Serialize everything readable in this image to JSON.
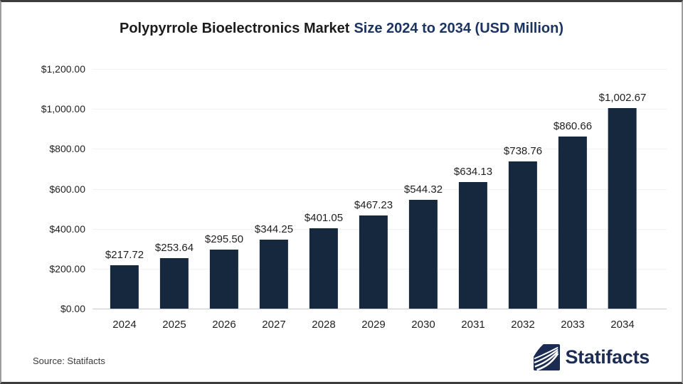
{
  "title": {
    "main": "Polypyrrole Bioelectronics Market",
    "accent": "Size 2024 to 2034 (USD Million)"
  },
  "chart_data": {
    "type": "bar",
    "title": "Polypyrrole Bioelectronics Market Size 2024 to 2034 (USD Million)",
    "categories": [
      "2024",
      "2025",
      "2026",
      "2027",
      "2028",
      "2029",
      "2030",
      "2031",
      "2032",
      "2033",
      "2034"
    ],
    "values": [
      217.72,
      253.64,
      295.5,
      344.25,
      401.05,
      467.23,
      544.32,
      634.13,
      738.76,
      860.66,
      1002.67
    ],
    "value_labels": [
      "$217.72",
      "$253.64",
      "$295.50",
      "$344.25",
      "$401.05",
      "$467.23",
      "$544.32",
      "$634.13",
      "$738.76",
      "$860.66",
      "$1,002.67"
    ],
    "xlabel": "",
    "ylabel": "",
    "ylim": [
      0,
      1200
    ],
    "y_ticks": [
      {
        "value": 0,
        "label": "$0.00"
      },
      {
        "value": 200,
        "label": "$200.00"
      },
      {
        "value": 400,
        "label": "$400.00"
      },
      {
        "value": 600,
        "label": "$600.00"
      },
      {
        "value": 800,
        "label": "$800.00"
      },
      {
        "value": 1000,
        "label": "$1,000.00"
      },
      {
        "value": 1200,
        "label": "$1,200.00"
      }
    ],
    "grid": "horizontal-only",
    "legend": "none",
    "bar_color": "#16283e"
  },
  "footer": {
    "source": "Source: Statifacts",
    "brand": "Statifacts"
  },
  "colors": {
    "bar": "#16283e",
    "title_main": "#1c1c1c",
    "title_accent": "#1c3461",
    "logo_navy": "#1b2b52",
    "gridline": "#f2f2f2",
    "axis_line": "#c9c9c9"
  }
}
